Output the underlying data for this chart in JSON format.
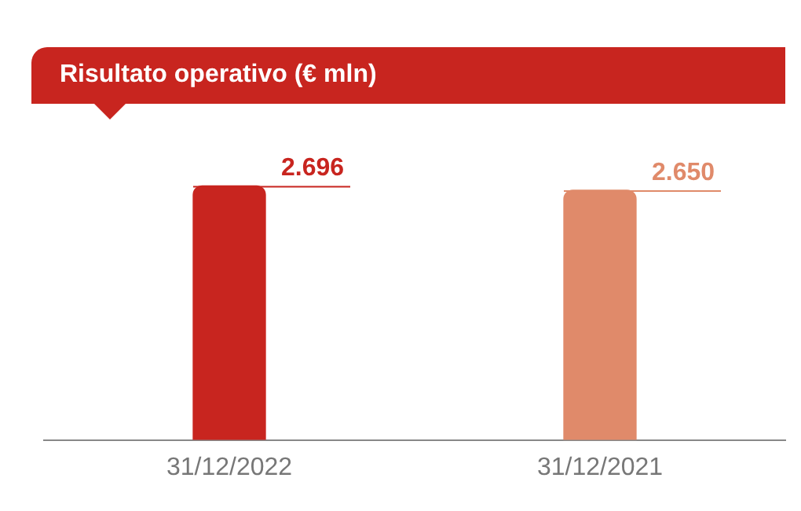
{
  "chart_data": {
    "type": "bar",
    "title": "Risultato operativo (€ mln)",
    "categories": [
      "31/12/2022",
      "31/12/2021"
    ],
    "values": [
      2696,
      2650
    ],
    "colors": [
      "#c8251f",
      "#e08a6a"
    ],
    "value_labels": [
      "2.696",
      "2.650"
    ],
    "relative": false,
    "grid": false,
    "legend": false
  }
}
